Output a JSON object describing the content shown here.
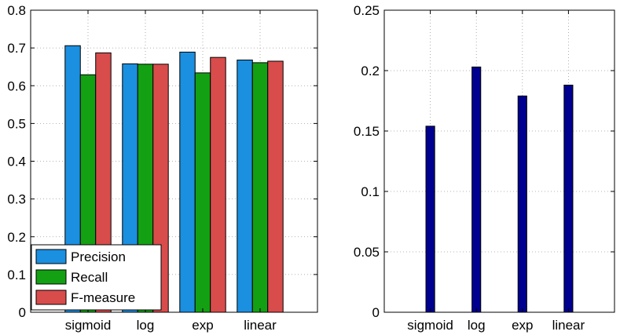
{
  "chart_data": [
    {
      "type": "bar",
      "categories": [
        "sigmoid",
        "log",
        "exp",
        "linear"
      ],
      "series": [
        {
          "name": "Precision",
          "color": "#1b8fe0",
          "values": [
            0.706,
            0.658,
            0.689,
            0.668
          ]
        },
        {
          "name": "Recall",
          "color": "#13a013",
          "values": [
            0.629,
            0.657,
            0.634,
            0.661
          ]
        },
        {
          "name": "F-measure",
          "color": "#d94c4c",
          "values": [
            0.687,
            0.657,
            0.675,
            0.665
          ]
        }
      ],
      "ylim": [
        0,
        0.8
      ],
      "yticks": [
        "0",
        "0.1",
        "0.2",
        "0.3",
        "0.4",
        "0.5",
        "0.6",
        "0.7",
        "0.8"
      ],
      "grid": true,
      "legend_position": "bottom-left"
    },
    {
      "type": "bar",
      "categories": [
        "sigmoid",
        "log",
        "exp",
        "linear"
      ],
      "series": [
        {
          "color": "#000090",
          "values": [
            0.154,
            0.203,
            0.179,
            0.188
          ]
        }
      ],
      "ylim": [
        0,
        0.25
      ],
      "yticks": [
        "0",
        "0.05",
        "0.1",
        "0.15",
        "0.2",
        "0.25"
      ],
      "grid": true
    }
  ]
}
